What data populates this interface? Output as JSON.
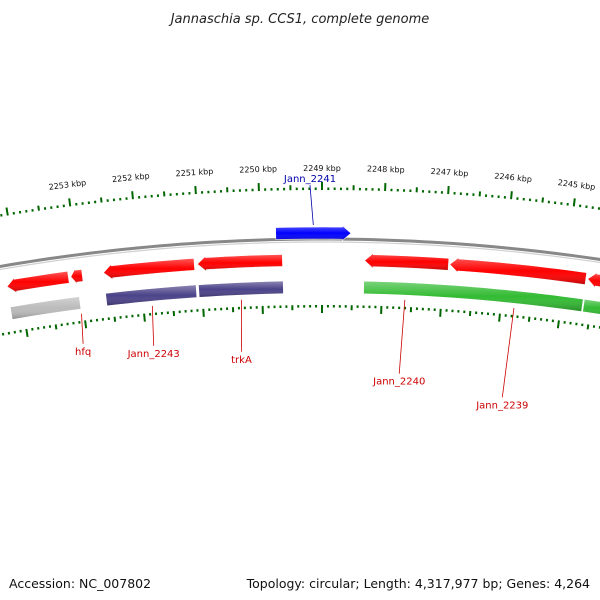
{
  "title": "Jannaschia sp. CCS1, complete genome",
  "footer": {
    "accession": "Accession: NC_007802",
    "summary": "Topology: circular; Length: 4,317,977 bp; Genes: 4,264"
  },
  "colors": {
    "forward_gene": "#ff0000",
    "reverse_gene": "#ff0000",
    "highlight_gene": "#0000ff",
    "cog_purple": "#4b4389",
    "cog_green": "#33bb33",
    "cog_gray": "#bbbbbb",
    "backbone": "#888888",
    "ticks": "#006600",
    "label_red": "#cc0000",
    "label_blue": "#0000aa"
  },
  "scale": {
    "unit": "kbp",
    "ticks": [
      {
        "kbp": 2253,
        "label": "2253 kbp"
      },
      {
        "kbp": 2252,
        "label": "2252 kbp"
      },
      {
        "kbp": 2251,
        "label": "2251 kbp"
      },
      {
        "kbp": 2250,
        "label": "2250 kbp"
      },
      {
        "kbp": 2249,
        "label": "2249 kbp"
      },
      {
        "kbp": 2248,
        "label": "2248 kbp"
      },
      {
        "kbp": 2247,
        "label": "2247 kbp"
      },
      {
        "kbp": 2246,
        "label": "2246 kbp"
      },
      {
        "kbp": 2245,
        "label": "2245 kbp"
      }
    ]
  },
  "genes": [
    {
      "id": "g-left-a",
      "kbp_from": 2254.2,
      "kbp_to": 2253.18,
      "track": "forward",
      "color": "#ff0000",
      "dir": "left",
      "label": ""
    },
    {
      "id": "hfq",
      "kbp_from": 2253.14,
      "kbp_to": 2252.95,
      "track": "forward",
      "color": "#ff0000",
      "dir": "left",
      "label": "hfq",
      "label_color": "#cc0000"
    },
    {
      "id": "Jann_2243",
      "kbp_from": 2252.6,
      "kbp_to": 2251.1,
      "track": "forward",
      "color": "#ff0000",
      "dir": "left",
      "label": "Jann_2243",
      "label_color": "#cc0000"
    },
    {
      "id": "trkA",
      "kbp_from": 2251.05,
      "kbp_to": 2249.65,
      "track": "forward",
      "color": "#ff0000",
      "dir": "left",
      "label": "trkA",
      "label_color": "#cc0000"
    },
    {
      "id": "Jann_2241",
      "kbp_from": 2249.75,
      "kbp_to": 2248.53,
      "track": "reverse",
      "color": "#0000ff",
      "dir": "right",
      "label": "Jann_2241",
      "label_color": "#0000aa"
    },
    {
      "id": "Jann_2240",
      "kbp_from": 2248.3,
      "kbp_to": 2246.92,
      "track": "forward",
      "color": "#ff0000",
      "dir": "left",
      "label": "Jann_2240",
      "label_color": "#cc0000"
    },
    {
      "id": "Jann_2239",
      "kbp_from": 2246.9,
      "kbp_to": 2244.65,
      "track": "forward",
      "color": "#ff0000",
      "dir": "left",
      "label": "Jann_2239",
      "label_color": "#cc0000"
    },
    {
      "id": "g-right-a",
      "kbp_from": 2244.62,
      "kbp_to": 2244.1,
      "track": "forward",
      "color": "#ff0000",
      "dir": "left",
      "label": ""
    }
  ],
  "cog_blocks": [
    {
      "id": "cog-gray",
      "kbp_from": 2254.2,
      "kbp_to": 2253.05,
      "color": "#bbbbbb"
    },
    {
      "id": "cog-purple-1",
      "kbp_from": 2252.6,
      "kbp_to": 2251.1,
      "color": "#4b4389"
    },
    {
      "id": "cog-purple-2",
      "kbp_from": 2251.05,
      "kbp_to": 2249.65,
      "color": "#4b4389"
    },
    {
      "id": "cog-green-1",
      "kbp_from": 2248.3,
      "kbp_to": 2244.65,
      "color": "#33bb33"
    },
    {
      "id": "cog-green-2",
      "kbp_from": 2244.62,
      "kbp_to": 2244.1,
      "color": "#33bb33"
    }
  ]
}
